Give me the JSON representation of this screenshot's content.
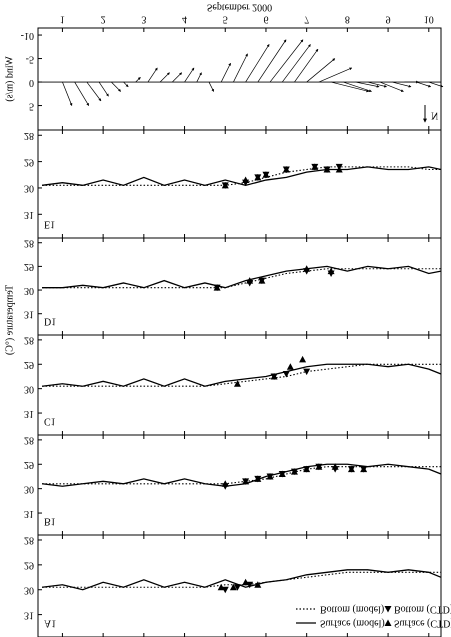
{
  "chart_data": [
    {
      "type": "line",
      "label": "A1",
      "legend": "upper right",
      "xlim": [
        0.4,
        10.3
      ],
      "xticks": [
        1,
        2,
        3,
        4,
        5,
        6,
        7,
        8,
        9,
        10
      ],
      "ylim": [
        27.8,
        31.9
      ],
      "yticks": [
        28,
        29,
        30,
        31
      ],
      "x": [
        0.5,
        1,
        1.5,
        2,
        2.5,
        3,
        3.5,
        4,
        4.5,
        5,
        5.5,
        6,
        6.5,
        7,
        7.5,
        8,
        8.5,
        9,
        9.5,
        10,
        10.3
      ],
      "series": [
        {
          "name": "Surface (model)",
          "color": "#000000",
          "style": "solid",
          "values": [
            29.9,
            29.8,
            30.0,
            29.7,
            29.9,
            29.6,
            29.9,
            29.7,
            29.9,
            29.6,
            29.9,
            29.7,
            29.6,
            29.4,
            29.3,
            29.2,
            29.2,
            29.3,
            29.2,
            29.3,
            29.5
          ]
        },
        {
          "name": "Bottom (model)",
          "color": "#000000",
          "style": "dotted",
          "values": [
            29.9,
            29.9,
            29.9,
            29.9,
            29.9,
            29.9,
            29.9,
            29.9,
            29.9,
            29.8,
            29.8,
            29.7,
            29.6,
            29.5,
            29.4,
            29.3,
            29.3,
            29.3,
            29.3,
            29.3,
            29.3
          ]
        },
        {
          "name": "Surface (CTD)",
          "color": "#000000",
          "style": "triangle-down",
          "x": [
            4.9,
            5.2,
            5.5,
            5.8
          ],
          "values": [
            29.9,
            29.9,
            29.7,
            29.8
          ]
        },
        {
          "name": "Bottom (CTD)",
          "color": "#000000",
          "style": "triangle-up",
          "x": [
            5.0,
            5.3,
            5.6
          ],
          "values": [
            30.0,
            29.9,
            29.8
          ]
        }
      ]
    },
    {
      "type": "line",
      "label": "B1",
      "xlim": [
        0.4,
        10.3
      ],
      "xticks": [
        1,
        2,
        3,
        4,
        5,
        6,
        7,
        8,
        9,
        10
      ],
      "ylim": [
        27.8,
        31.9
      ],
      "yticks": [
        28,
        29,
        30,
        31
      ],
      "x": [
        0.5,
        1,
        1.5,
        2,
        2.5,
        3,
        3.5,
        4,
        4.5,
        5,
        5.5,
        6,
        6.5,
        7,
        7.5,
        8,
        8.5,
        9,
        9.5,
        10,
        10.3
      ],
      "series": [
        {
          "color": "#000000",
          "style": "solid",
          "values": [
            29.8,
            29.9,
            29.8,
            29.7,
            29.8,
            29.6,
            29.8,
            29.6,
            29.8,
            29.9,
            29.8,
            29.5,
            29.3,
            29.1,
            29.0,
            29.0,
            29.1,
            29.0,
            29.1,
            29.2,
            29.4
          ]
        },
        {
          "color": "#000000",
          "style": "dotted",
          "values": [
            29.8,
            29.8,
            29.8,
            29.8,
            29.8,
            29.8,
            29.8,
            29.8,
            29.8,
            29.8,
            29.7,
            29.6,
            29.4,
            29.2,
            29.1,
            29.1,
            29.1,
            29.1,
            29.1,
            29.1,
            29.1
          ]
        },
        {
          "color": "#000000",
          "style": "triangle-down",
          "x": [
            5.0,
            5.5,
            5.8,
            6.1,
            6.4,
            6.7,
            7.0,
            7.3,
            7.7,
            8.1,
            8.4
          ],
          "values": [
            29.8,
            29.7,
            29.6,
            29.5,
            29.4,
            29.3,
            29.2,
            29.1,
            29.1,
            29.2,
            29.2
          ]
        },
        {
          "color": "#000000",
          "style": "triangle-up",
          "x": [
            5.0,
            5.5,
            5.8,
            6.1,
            6.4,
            6.7,
            7.0,
            7.3,
            7.7,
            8.1,
            8.4
          ],
          "values": [
            29.9,
            29.7,
            29.6,
            29.5,
            29.4,
            29.3,
            29.2,
            29.1,
            29.2,
            29.2,
            29.2
          ]
        }
      ]
    },
    {
      "type": "line",
      "label": "C1",
      "y_label": "Temperature (°C)",
      "xlim": [
        0.4,
        10.3
      ],
      "xticks": [
        1,
        2,
        3,
        4,
        5,
        6,
        7,
        8,
        9,
        10
      ],
      "ylim": [
        27.8,
        31.9
      ],
      "yticks": [
        28,
        29,
        30,
        31
      ],
      "x": [
        0.5,
        1,
        1.5,
        2,
        2.5,
        3,
        3.5,
        4,
        4.5,
        5,
        5.5,
        6,
        6.5,
        7,
        7.5,
        8,
        8.5,
        9,
        9.5,
        10,
        10.3
      ],
      "series": [
        {
          "color": "#000000",
          "style": "solid",
          "values": [
            29.9,
            29.8,
            29.9,
            29.7,
            29.9,
            29.6,
            29.9,
            29.6,
            29.9,
            29.7,
            29.6,
            29.5,
            29.3,
            29.1,
            29.0,
            29.0,
            29.0,
            29.1,
            29.0,
            29.2,
            29.4
          ]
        },
        {
          "color": "#000000",
          "style": "dotted",
          "values": [
            29.9,
            29.9,
            29.9,
            29.9,
            29.9,
            29.9,
            29.9,
            29.9,
            29.9,
            29.8,
            29.7,
            29.6,
            29.5,
            29.3,
            29.2,
            29.1,
            29.0,
            29.0,
            29.0,
            29.0,
            29.0
          ]
        },
        {
          "color": "#000000",
          "style": "triangle-down",
          "x": [
            5.3,
            6.2,
            6.6,
            6.9
          ],
          "values": [
            29.8,
            29.5,
            29.1,
            28.8
          ]
        },
        {
          "color": "#000000",
          "style": "triangle-up",
          "x": [
            6.2,
            6.5,
            7.0
          ],
          "values": [
            29.5,
            29.4,
            29.3
          ]
        }
      ]
    },
    {
      "type": "line",
      "label": "D1",
      "xlim": [
        0.4,
        10.3
      ],
      "xticks": [
        1,
        2,
        3,
        4,
        5,
        6,
        7,
        8,
        9,
        10
      ],
      "ylim": [
        27.8,
        31.9
      ],
      "yticks": [
        28,
        29,
        30,
        31
      ],
      "x": [
        0.5,
        1,
        1.5,
        2,
        2.5,
        3,
        3.5,
        4,
        4.5,
        5,
        5.5,
        6,
        6.5,
        7,
        7.5,
        8,
        8.5,
        9,
        9.5,
        10,
        10.3
      ],
      "series": [
        {
          "color": "#000000",
          "style": "solid",
          "values": [
            29.9,
            29.9,
            29.8,
            29.9,
            29.7,
            29.9,
            29.6,
            29.9,
            29.7,
            29.9,
            29.6,
            29.4,
            29.2,
            29.1,
            29.0,
            29.2,
            29.0,
            29.1,
            29.0,
            29.3,
            29.2
          ]
        },
        {
          "color": "#000000",
          "style": "dotted",
          "values": [
            29.9,
            29.9,
            29.9,
            29.9,
            29.9,
            29.9,
            29.9,
            29.9,
            29.9,
            29.9,
            29.7,
            29.5,
            29.3,
            29.2,
            29.1,
            29.1,
            29.1,
            29.1,
            29.1,
            29.1,
            29.1
          ]
        },
        {
          "color": "#000000",
          "style": "triangle-down",
          "x": [
            4.8,
            5.6,
            5.9,
            7.0,
            7.6
          ],
          "values": [
            29.9,
            29.6,
            29.6,
            29.1,
            29.2
          ]
        },
        {
          "color": "#000000",
          "style": "triangle-up",
          "x": [
            4.8,
            5.6,
            5.9,
            7.0,
            7.6
          ],
          "values": [
            29.9,
            29.7,
            29.6,
            29.2,
            29.3
          ]
        }
      ]
    },
    {
      "type": "line",
      "label": "E1",
      "xlim": [
        0.4,
        10.3
      ],
      "xticks": [
        1,
        2,
        3,
        4,
        5,
        6,
        7,
        8,
        9,
        10
      ],
      "ylim": [
        27.8,
        31.9
      ],
      "yticks": [
        28,
        29,
        30,
        31
      ],
      "x": [
        0.5,
        1,
        1.5,
        2,
        2.5,
        3,
        3.5,
        4,
        4.5,
        5,
        5.5,
        6,
        6.5,
        7,
        7.5,
        8,
        8.5,
        9,
        9.5,
        10,
        10.3
      ],
      "series": [
        {
          "color": "#000000",
          "style": "solid",
          "values": [
            29.9,
            29.8,
            29.9,
            29.7,
            29.9,
            29.6,
            29.9,
            29.7,
            29.9,
            29.7,
            29.9,
            29.7,
            29.6,
            29.4,
            29.3,
            29.3,
            29.2,
            29.3,
            29.3,
            29.2,
            29.3
          ]
        },
        {
          "color": "#000000",
          "style": "dotted",
          "values": [
            29.9,
            29.9,
            29.9,
            29.9,
            29.9,
            29.9,
            29.9,
            29.9,
            29.9,
            29.9,
            29.8,
            29.6,
            29.4,
            29.3,
            29.2,
            29.2,
            29.2,
            29.2,
            29.2,
            29.3,
            29.3
          ]
        },
        {
          "color": "#000000",
          "style": "triangle-down",
          "x": [
            5.0,
            5.5,
            5.8,
            6.0,
            6.5,
            7.2,
            7.5,
            7.8
          ],
          "values": [
            29.9,
            29.7,
            29.6,
            29.5,
            29.3,
            29.2,
            29.3,
            29.3
          ]
        },
        {
          "color": "#000000",
          "style": "triangle-up",
          "x": [
            5.0,
            5.5,
            5.8,
            6.0,
            6.5,
            7.2,
            7.5,
            7.8
          ],
          "values": [
            29.9,
            29.8,
            29.6,
            29.5,
            29.3,
            29.2,
            29.3,
            29.2
          ]
        }
      ]
    },
    {
      "type": "quiver",
      "y_label": "Wind (m/s)",
      "x_label": "September 2000",
      "north_label": "N",
      "xlim": [
        0.4,
        10.3
      ],
      "xticks": [
        1,
        2,
        3,
        4,
        5,
        6,
        7,
        8,
        9,
        10
      ],
      "ylim": [
        -11.5,
        10.2
      ],
      "yticks": [
        -10,
        -5,
        0,
        5
      ],
      "color": "#000000",
      "x": [
        1.0,
        1.3,
        1.6,
        1.9,
        2.2,
        2.5,
        2.8,
        3.1,
        3.4,
        3.7,
        4.0,
        4.3,
        4.6,
        4.9,
        5.2,
        5.5,
        5.8,
        6.1,
        6.4,
        6.7,
        7.0,
        7.3,
        7.6,
        7.9,
        8.2,
        8.5,
        8.8,
        9.1,
        9.4,
        9.7,
        10.0
      ],
      "u": [
        2,
        3,
        3,
        2,
        2,
        1,
        1,
        2,
        2,
        2,
        2,
        1,
        1,
        2,
        3,
        5,
        6,
        7,
        6,
        5,
        6,
        7,
        8,
        6,
        5,
        4,
        5,
        4,
        3,
        3,
        3
      ],
      "v": [
        5,
        5,
        4,
        3,
        2,
        1,
        -1,
        -3,
        -2,
        -2,
        -3,
        -2,
        2,
        -4,
        -6,
        -8,
        -9,
        -9,
        -8,
        -7,
        -5,
        -3,
        2,
        2,
        1,
        1,
        2,
        1,
        0,
        1,
        1
      ]
    }
  ]
}
